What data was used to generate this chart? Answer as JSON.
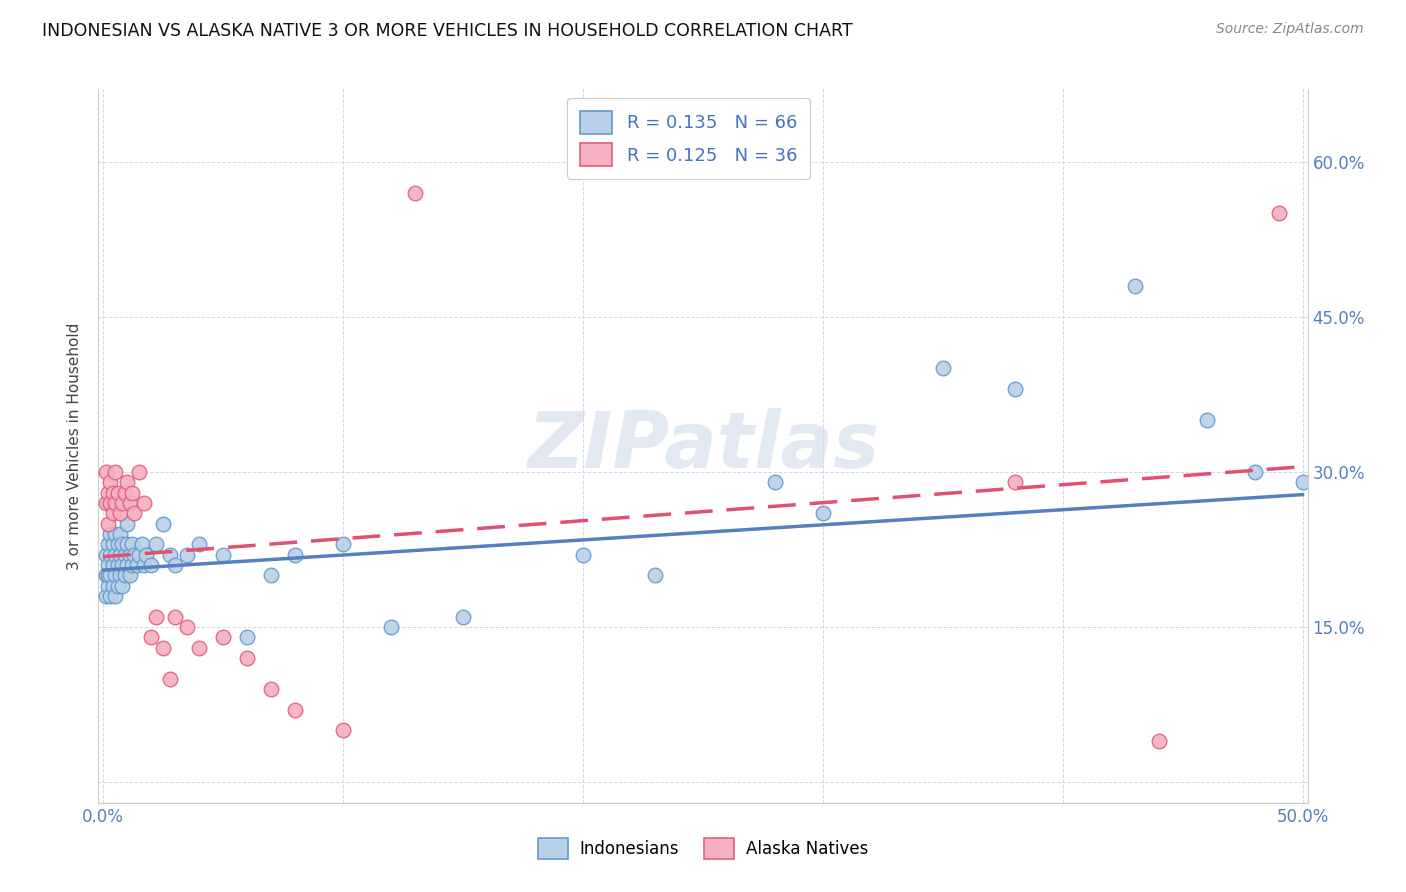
{
  "title": "INDONESIAN VS ALASKA NATIVE 3 OR MORE VEHICLES IN HOUSEHOLD CORRELATION CHART",
  "source": "Source: ZipAtlas.com",
  "ylabel": "3 or more Vehicles in Household",
  "ytick_vals": [
    0.0,
    0.15,
    0.3,
    0.45,
    0.6
  ],
  "ytick_labels": [
    "",
    "15.0%",
    "30.0%",
    "45.0%",
    "60.0%"
  ],
  "xtick_vals": [
    0.0,
    0.1,
    0.2,
    0.3,
    0.4,
    0.5
  ],
  "xlim": [
    -0.002,
    0.502
  ],
  "ylim": [
    -0.02,
    0.67
  ],
  "legend_line1": "R = 0.135   N = 66",
  "legend_line2": "R = 0.125   N = 36",
  "color_indonesian_fill": "#b8d0e8",
  "color_indonesian_edge": "#6699cc",
  "color_alaska_fill": "#f4b0c0",
  "color_alaska_edge": "#e06080",
  "color_line_ind": "#5580c0",
  "color_line_alask": "#e05070",
  "watermark": "ZIPatlas",
  "ind_line_x0": 0.0,
  "ind_line_x1": 0.5,
  "ind_line_y0": 0.205,
  "ind_line_y1": 0.278,
  "alask_line_x0": 0.0,
  "alask_line_x1": 0.5,
  "alask_line_y0": 0.218,
  "alask_line_y1": 0.305,
  "indonesian_x": [
    0.001,
    0.001,
    0.001,
    0.002,
    0.002,
    0.002,
    0.002,
    0.003,
    0.003,
    0.003,
    0.003,
    0.004,
    0.004,
    0.004,
    0.005,
    0.005,
    0.005,
    0.005,
    0.006,
    0.006,
    0.006,
    0.007,
    0.007,
    0.007,
    0.008,
    0.008,
    0.008,
    0.009,
    0.009,
    0.01,
    0.01,
    0.01,
    0.011,
    0.011,
    0.012,
    0.012,
    0.013,
    0.014,
    0.015,
    0.016,
    0.017,
    0.018,
    0.02,
    0.022,
    0.025,
    0.028,
    0.03,
    0.035,
    0.04,
    0.05,
    0.06,
    0.07,
    0.08,
    0.1,
    0.12,
    0.15,
    0.2,
    0.23,
    0.28,
    0.3,
    0.35,
    0.38,
    0.43,
    0.46,
    0.48,
    0.5
  ],
  "indonesian_y": [
    0.22,
    0.2,
    0.18,
    0.21,
    0.19,
    0.23,
    0.2,
    0.22,
    0.2,
    0.18,
    0.24,
    0.21,
    0.23,
    0.19,
    0.22,
    0.2,
    0.24,
    0.18,
    0.21,
    0.19,
    0.23,
    0.22,
    0.2,
    0.24,
    0.21,
    0.23,
    0.19,
    0.22,
    0.2,
    0.21,
    0.23,
    0.25,
    0.22,
    0.2,
    0.21,
    0.23,
    0.22,
    0.21,
    0.22,
    0.23,
    0.21,
    0.22,
    0.21,
    0.23,
    0.25,
    0.22,
    0.21,
    0.22,
    0.23,
    0.22,
    0.14,
    0.2,
    0.22,
    0.23,
    0.15,
    0.16,
    0.22,
    0.2,
    0.29,
    0.26,
    0.4,
    0.38,
    0.48,
    0.35,
    0.3,
    0.29
  ],
  "alaska_x": [
    0.001,
    0.001,
    0.002,
    0.002,
    0.003,
    0.003,
    0.004,
    0.004,
    0.005,
    0.005,
    0.006,
    0.007,
    0.008,
    0.009,
    0.01,
    0.011,
    0.012,
    0.013,
    0.015,
    0.017,
    0.02,
    0.022,
    0.025,
    0.028,
    0.03,
    0.035,
    0.04,
    0.05,
    0.06,
    0.07,
    0.08,
    0.1,
    0.13,
    0.38,
    0.44,
    0.49
  ],
  "alaska_y": [
    0.27,
    0.3,
    0.28,
    0.25,
    0.27,
    0.29,
    0.26,
    0.28,
    0.27,
    0.3,
    0.28,
    0.26,
    0.27,
    0.28,
    0.29,
    0.27,
    0.28,
    0.26,
    0.3,
    0.27,
    0.14,
    0.16,
    0.13,
    0.1,
    0.16,
    0.15,
    0.13,
    0.14,
    0.12,
    0.09,
    0.07,
    0.05,
    0.57,
    0.29,
    0.04,
    0.55
  ]
}
